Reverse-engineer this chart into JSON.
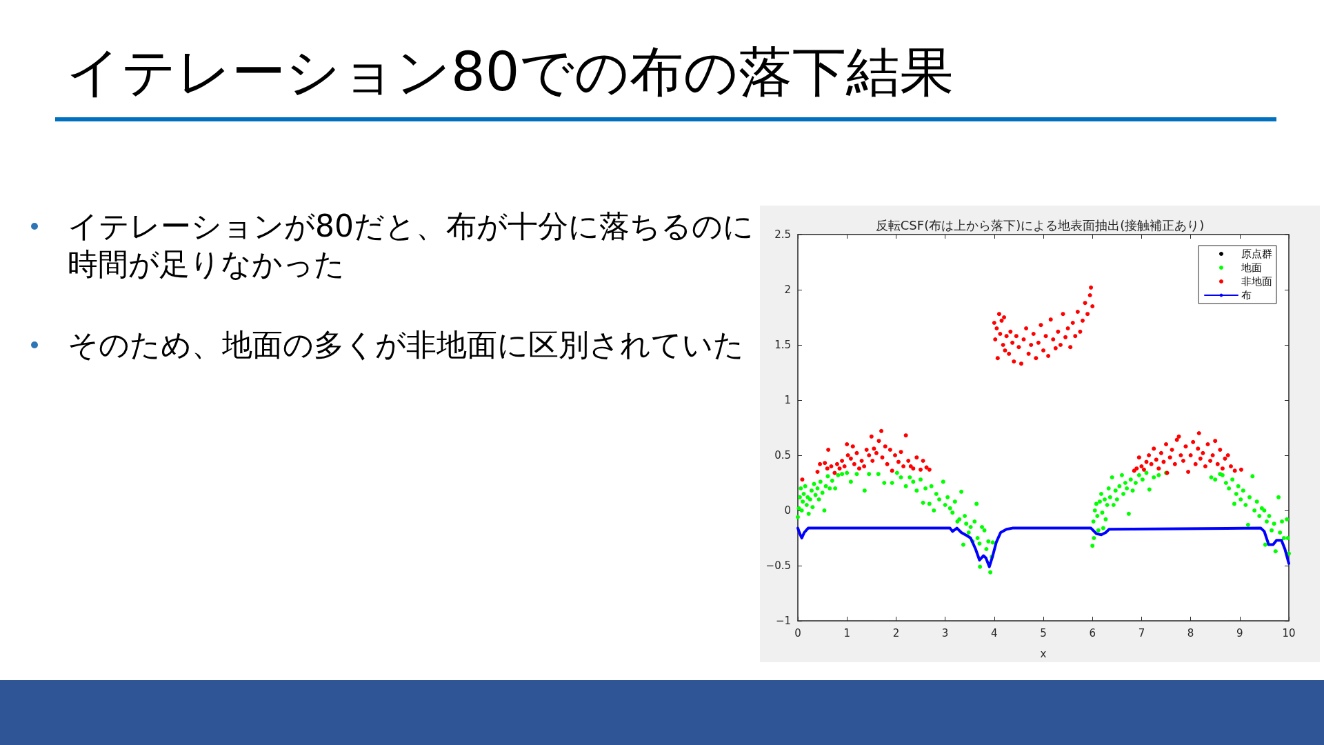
{
  "chart_data": {
    "type": "scatter",
    "title": "イテレーション80での布の落下結果",
    "subtitle": "反転CSF(布は上から落下)による地表面抽出(接触補正あり)",
    "xlabel": "x",
    "annotations": [
      "イテレーションが80だと、布が十分に落ちるのに時間が足りなかった",
      "そのため、地面の多くが非地面に区別されていた"
    ],
    "xlim": [
      0,
      10
    ],
    "xticks": [
      0,
      1,
      2,
      3,
      4,
      5,
      6,
      7,
      8,
      9,
      10
    ],
    "ylim": [
      -1,
      2.5
    ],
    "yticks": [
      {
        "value": -1,
        "label": "−1"
      },
      {
        "value": -0.5,
        "label": "−0.5"
      },
      0,
      0.5,
      1,
      1.5,
      2,
      2.5
    ],
    "grid": false,
    "legend": "top right",
    "marker": "circle",
    "series": [
      {
        "name": "原点群",
        "color": "#000000"
      },
      {
        "name": "地面",
        "color": "#00ff00",
        "x": [
          0.0,
          0.02,
          0.04,
          0.06,
          0.08,
          0.1,
          0.12,
          0.15,
          0.18,
          0.2,
          0.22,
          0.25,
          0.28,
          0.3,
          0.33,
          0.36,
          0.4,
          0.43,
          0.46,
          0.5,
          0.54,
          0.57,
          0.61,
          0.65,
          0.7,
          0.76,
          0.82,
          0.9,
          1.0,
          1.08,
          1.2,
          1.36,
          1.45,
          1.64,
          1.76,
          1.92,
          2.02,
          2.1,
          2.2,
          2.28,
          2.35,
          2.42,
          2.5,
          2.55,
          2.6,
          2.68,
          2.72,
          2.77,
          2.82,
          2.88,
          2.96,
          3.0,
          3.05,
          3.1,
          3.15,
          3.2,
          3.25,
          3.29,
          3.33,
          3.37,
          3.4,
          3.43,
          3.48,
          3.52,
          3.56,
          3.6,
          3.64,
          3.66,
          3.7,
          3.71,
          3.75,
          3.8,
          3.84,
          3.88,
          3.92,
          3.95,
          3.97,
          6.0,
          6.02,
          6.03,
          6.05,
          6.08,
          6.1,
          6.12,
          6.15,
          6.18,
          6.2,
          6.22,
          6.25,
          6.27,
          6.3,
          6.33,
          6.36,
          6.4,
          6.43,
          6.47,
          6.5,
          6.55,
          6.6,
          6.63,
          6.67,
          6.7,
          6.74,
          6.78,
          6.82,
          6.88,
          6.95,
          7.02,
          7.1,
          7.16,
          7.25,
          7.35,
          7.5,
          8.42,
          8.5,
          8.6,
          8.65,
          8.72,
          8.78,
          8.85,
          8.89,
          8.93,
          8.97,
          9.02,
          9.07,
          9.12,
          9.17,
          9.2,
          9.26,
          9.3,
          9.35,
          9.4,
          9.45,
          9.5,
          9.52,
          9.55,
          9.6,
          9.65,
          9.7,
          9.73,
          9.79,
          9.82,
          9.86,
          9.9,
          9.96,
          9.98,
          10.0
        ],
        "values": [
          -0.06,
          0.02,
          0.12,
          0.2,
          0.0,
          0.08,
          0.15,
          0.22,
          0.05,
          0.12,
          -0.03,
          0.1,
          0.18,
          0.03,
          0.24,
          0.14,
          0.2,
          0.1,
          0.26,
          0.16,
          0.0,
          0.22,
          0.31,
          0.2,
          0.27,
          0.2,
          0.32,
          0.33,
          0.34,
          0.26,
          0.33,
          0.18,
          0.33,
          0.33,
          0.25,
          0.25,
          0.34,
          0.3,
          0.22,
          0.3,
          0.26,
          0.18,
          0.28,
          0.07,
          0.2,
          0.06,
          0.22,
          0.0,
          0.15,
          0.1,
          0.26,
          0.05,
          0.12,
          0.02,
          -0.02,
          0.08,
          -0.1,
          -0.08,
          0.17,
          -0.31,
          -0.05,
          -0.12,
          -0.2,
          -0.15,
          -0.28,
          -0.1,
          0.06,
          -0.25,
          -0.3,
          -0.51,
          -0.15,
          -0.18,
          -0.35,
          -0.28,
          -0.56,
          -0.42,
          -0.29,
          -0.32,
          -0.1,
          -0.25,
          0.0,
          0.06,
          -0.05,
          -0.18,
          0.08,
          0.15,
          -0.02,
          -0.16,
          0.1,
          -0.08,
          0.05,
          0.2,
          0.12,
          0.3,
          0.05,
          0.18,
          0.1,
          0.22,
          0.32,
          0.15,
          0.25,
          0.2,
          -0.03,
          0.28,
          0.18,
          0.25,
          0.32,
          0.28,
          0.34,
          0.19,
          0.3,
          0.32,
          0.34,
          0.3,
          0.28,
          0.33,
          0.32,
          0.25,
          0.2,
          0.28,
          0.06,
          0.15,
          0.22,
          0.1,
          0.18,
          0.05,
          -0.13,
          0.12,
          0.31,
          0.0,
          0.08,
          -0.05,
          0.02,
          0.0,
          -0.31,
          -0.1,
          -0.05,
          -0.18,
          -0.12,
          -0.37,
          0.12,
          -0.2,
          -0.1,
          -0.25,
          -0.08,
          -0.25,
          -0.39
        ]
      },
      {
        "name": "非地面",
        "color": "#ff0000",
        "x": [
          0.09,
          0.4,
          0.45,
          0.55,
          0.6,
          0.62,
          0.68,
          0.75,
          0.8,
          0.85,
          0.9,
          0.95,
          1.0,
          1.02,
          1.08,
          1.12,
          1.15,
          1.2,
          1.25,
          1.3,
          1.35,
          1.4,
          1.45,
          1.5,
          1.52,
          1.55,
          1.6,
          1.65,
          1.7,
          1.72,
          1.78,
          1.82,
          1.88,
          1.92,
          1.98,
          2.05,
          2.1,
          2.15,
          2.2,
          2.25,
          2.3,
          2.35,
          2.42,
          2.5,
          2.55,
          2.62,
          2.68,
          4.0,
          4.02,
          4.05,
          4.07,
          4.1,
          4.12,
          4.15,
          4.18,
          4.2,
          4.22,
          4.25,
          4.3,
          4.33,
          4.37,
          4.4,
          4.45,
          4.5,
          4.55,
          4.6,
          4.65,
          4.7,
          4.75,
          4.8,
          4.85,
          4.9,
          4.95,
          5.0,
          5.05,
          5.1,
          5.15,
          5.2,
          5.25,
          5.3,
          5.35,
          5.4,
          5.45,
          5.5,
          5.55,
          5.6,
          5.65,
          5.7,
          5.75,
          5.8,
          5.85,
          5.9,
          5.95,
          5.97,
          6.0,
          6.85,
          6.9,
          6.95,
          7.0,
          7.05,
          7.1,
          7.15,
          7.2,
          7.25,
          7.3,
          7.35,
          7.4,
          7.45,
          7.5,
          7.52,
          7.58,
          7.62,
          7.68,
          7.72,
          7.76,
          7.8,
          7.85,
          7.9,
          7.95,
          8.0,
          8.05,
          8.1,
          8.15,
          8.17,
          8.2,
          8.25,
          8.3,
          8.35,
          8.4,
          8.45,
          8.5,
          8.55,
          8.6,
          8.65,
          8.7,
          8.76,
          8.82,
          8.9,
          9.03
        ],
        "values": [
          0.28,
          0.35,
          0.42,
          0.43,
          0.38,
          0.55,
          0.4,
          0.34,
          0.42,
          0.38,
          0.45,
          0.4,
          0.6,
          0.5,
          0.47,
          0.58,
          0.42,
          0.52,
          0.38,
          0.45,
          0.4,
          0.55,
          0.5,
          0.67,
          0.45,
          0.56,
          0.52,
          0.63,
          0.72,
          0.48,
          0.58,
          0.42,
          0.55,
          0.36,
          0.5,
          0.44,
          0.53,
          0.4,
          0.68,
          0.45,
          0.4,
          0.38,
          0.48,
          0.37,
          0.45,
          0.39,
          0.37,
          1.7,
          1.55,
          1.65,
          1.38,
          1.78,
          1.6,
          1.72,
          1.5,
          1.75,
          1.45,
          1.58,
          1.42,
          1.62,
          1.52,
          1.35,
          1.58,
          1.48,
          1.33,
          1.55,
          1.65,
          1.42,
          1.5,
          1.6,
          1.38,
          1.52,
          1.68,
          1.45,
          1.58,
          1.4,
          1.73,
          1.55,
          1.47,
          1.62,
          1.5,
          1.78,
          1.57,
          1.65,
          1.48,
          1.7,
          1.58,
          1.8,
          1.62,
          1.72,
          1.88,
          1.78,
          1.95,
          2.02,
          1.85,
          0.36,
          0.38,
          0.48,
          0.4,
          0.37,
          0.44,
          0.5,
          0.42,
          0.56,
          0.46,
          0.38,
          0.52,
          0.44,
          0.6,
          0.34,
          0.48,
          0.55,
          0.42,
          0.64,
          0.67,
          0.5,
          0.45,
          0.58,
          0.35,
          0.5,
          0.62,
          0.42,
          0.56,
          0.7,
          0.47,
          0.52,
          0.4,
          0.6,
          0.45,
          0.5,
          0.63,
          0.42,
          0.55,
          0.38,
          0.47,
          0.5,
          0.4,
          0.36,
          0.37
        ]
      },
      {
        "name": "布",
        "color": "#0000ff",
        "type": "line",
        "marker": "none",
        "x": [
          0,
          0.04,
          0.08,
          0.13,
          0.21,
          3.1,
          3.15,
          3.24,
          3.33,
          3.45,
          3.52,
          3.57,
          3.62,
          3.7,
          3.78,
          3.83,
          3.9,
          3.97,
          4.04,
          4.13,
          4.25,
          4.37,
          5.97,
          6.08,
          6.18,
          6.27,
          6.34,
          9.43,
          9.5,
          9.59,
          9.68,
          9.75,
          9.85,
          9.92,
          10
        ],
        "values": [
          -0.16,
          -0.21,
          -0.25,
          -0.2,
          -0.16,
          -0.16,
          -0.19,
          -0.16,
          -0.2,
          -0.23,
          -0.25,
          -0.3,
          -0.35,
          -0.45,
          -0.41,
          -0.43,
          -0.51,
          -0.41,
          -0.29,
          -0.2,
          -0.17,
          -0.16,
          -0.16,
          -0.21,
          -0.22,
          -0.2,
          -0.17,
          -0.16,
          -0.19,
          -0.31,
          -0.31,
          -0.27,
          -0.27,
          -0.35,
          -0.48
        ]
      }
    ]
  }
}
